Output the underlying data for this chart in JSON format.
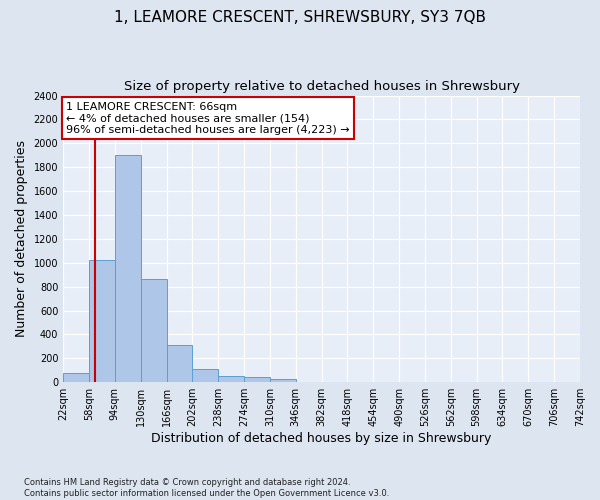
{
  "title": "1, LEAMORE CRESCENT, SHREWSBURY, SY3 7QB",
  "subtitle": "Size of property relative to detached houses in Shrewsbury",
  "xlabel": "Distribution of detached houses by size in Shrewsbury",
  "ylabel": "Number of detached properties",
  "footnote": "Contains HM Land Registry data © Crown copyright and database right 2024.\nContains public sector information licensed under the Open Government Licence v3.0.",
  "bin_edges": [
    22,
    58,
    94,
    130,
    166,
    202,
    238,
    274,
    310,
    346,
    382,
    418,
    454,
    490,
    526,
    562,
    598,
    634,
    670,
    706,
    742
  ],
  "bar_heights": [
    80,
    1020,
    1900,
    860,
    310,
    110,
    50,
    40,
    25,
    0,
    0,
    0,
    0,
    0,
    0,
    0,
    0,
    0,
    0,
    0
  ],
  "bar_color": "#aec6e8",
  "bar_edge_color": "#5a9fd4",
  "property_line_x": 66,
  "property_line_color": "#cc0000",
  "annotation_text": "1 LEAMORE CRESCENT: 66sqm\n← 4% of detached houses are smaller (154)\n96% of semi-detached houses are larger (4,223) →",
  "annotation_box_color": "#ffffff",
  "annotation_box_edge": "#cc0000",
  "ylim": [
    0,
    2400
  ],
  "yticks": [
    0,
    200,
    400,
    600,
    800,
    1000,
    1200,
    1400,
    1600,
    1800,
    2000,
    2200,
    2400
  ],
  "background_color": "#dde5f0",
  "plot_background": "#e8eef7",
  "title_fontsize": 11,
  "subtitle_fontsize": 9.5,
  "tick_label_fontsize": 7,
  "axis_label_fontsize": 9,
  "footnote_fontsize": 6,
  "annotation_fontsize": 8
}
